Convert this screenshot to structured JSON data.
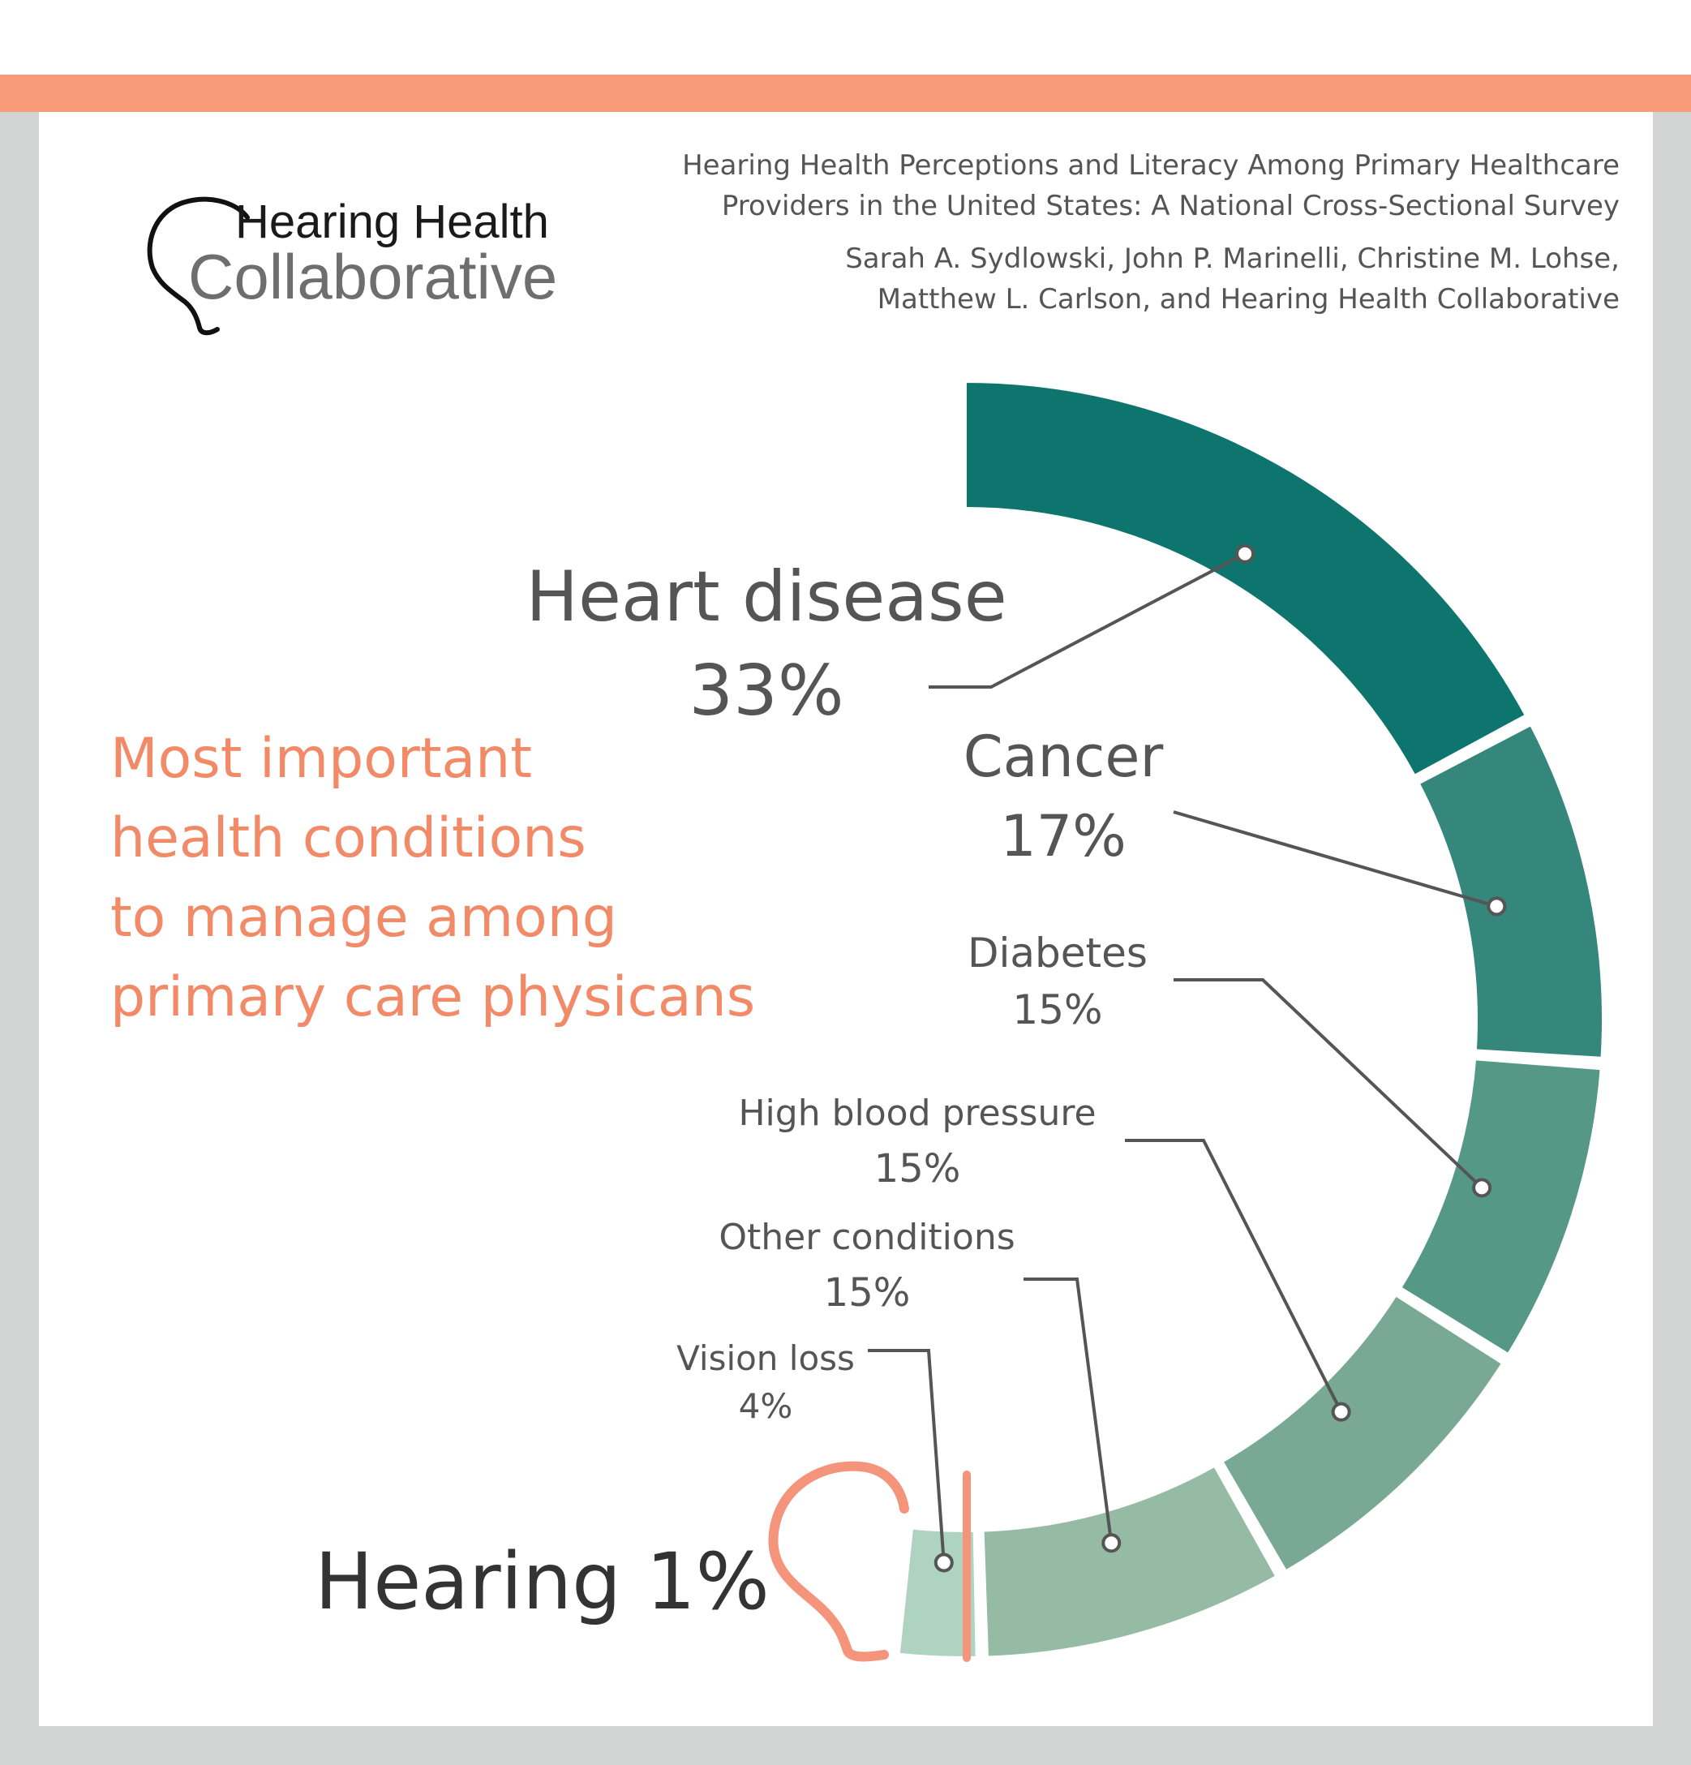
{
  "logo": {
    "line1": "Hearing Health",
    "line2": "Collaborative",
    "icon": "ear-outline-icon"
  },
  "citation": {
    "title_line1": "Hearing Health Perceptions and Literacy Among Primary Healthcare",
    "title_line2": "Providers in the United States: A National Cross-Sectional Survey",
    "authors_line1": "Sarah A. Sydlowski, John P. Marinelli, Christine M. Lohse,",
    "authors_line2": "Matthew L. Carlson, and Hearing Health Collaborative"
  },
  "headline": {
    "lines": [
      "Most important",
      "health conditions",
      "to manage among",
      "primary care physicans"
    ]
  },
  "colors": {
    "accent_bar": "#f79b78",
    "frame": "#d3d5d4",
    "headline": "#f28a68",
    "ear_icon": "#f4947a"
  },
  "chart_data": {
    "type": "pie",
    "subtype": "half-donut",
    "categories": [
      "Heart disease",
      "Cancer",
      "Diabetes",
      "High blood pressure",
      "Other conditions",
      "Vision loss",
      "Hearing"
    ],
    "values": [
      33,
      17,
      15,
      15,
      15,
      4,
      1
    ],
    "display_values": [
      "33%",
      "17%",
      "15%",
      "15%",
      "15%",
      "4%",
      "1%"
    ],
    "colors": [
      "#0e756e",
      "#35867b",
      "#569886",
      "#79a994",
      "#96bba5",
      "#afd3c1",
      "#f4947a"
    ],
    "hearing_label": "Hearing 1%"
  }
}
